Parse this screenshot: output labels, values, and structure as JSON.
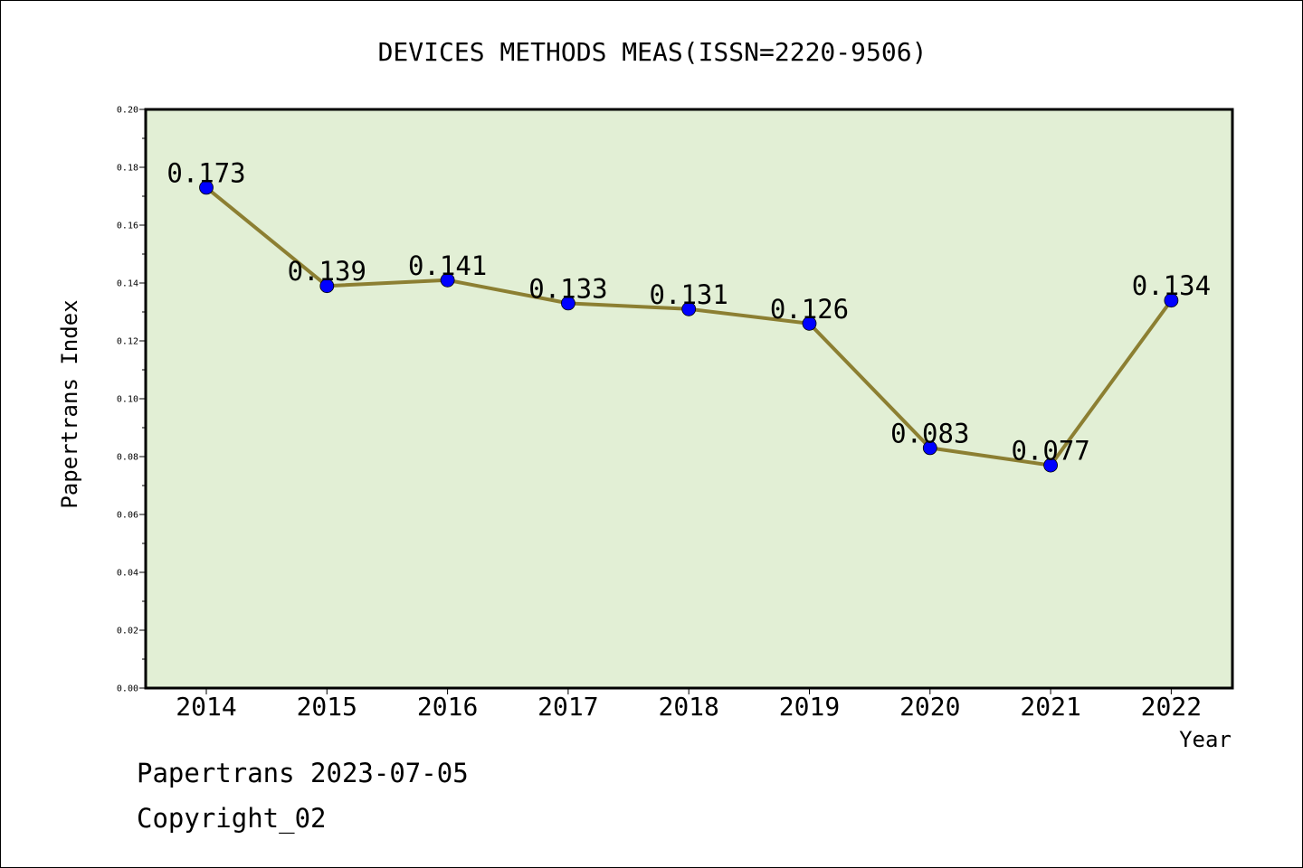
{
  "chart_data": {
    "type": "line",
    "title": "DEVICES METHODS MEAS(ISSN=2220-9506)",
    "xlabel": "Year",
    "ylabel": "Papertrans Index",
    "categories": [
      "2014",
      "2015",
      "2016",
      "2017",
      "2018",
      "2019",
      "2020",
      "2021",
      "2022"
    ],
    "series": [
      {
        "values": [
          0.173,
          0.139,
          0.141,
          0.133,
          0.131,
          0.126,
          0.083,
          0.077,
          0.134
        ],
        "labels": [
          "0.173",
          "0.139",
          "0.141",
          "0.133",
          "0.131",
          "0.126",
          "0.083",
          "0.077",
          "0.134"
        ]
      }
    ],
    "ylim": [
      0,
      0.2
    ],
    "yticks": [
      "0.00",
      "0.02",
      "0.04",
      "0.06",
      "0.08",
      "0.10",
      "0.12",
      "0.14",
      "0.16",
      "0.18",
      "0.20"
    ],
    "grid": false,
    "colors": {
      "plot_background": "#e2efd5",
      "line": "#8c7f32",
      "marker": "#0000ff"
    }
  },
  "footer": {
    "line1": "Papertrans 2023-07-05",
    "line2": "Copyright_02"
  }
}
